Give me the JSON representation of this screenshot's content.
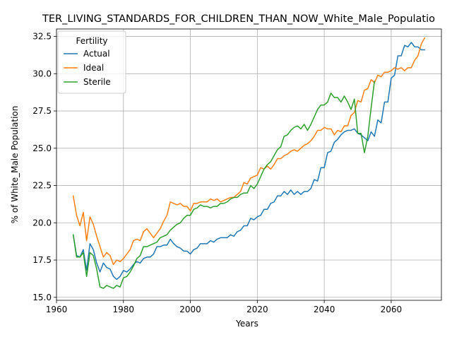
{
  "chart_data": {
    "type": "line",
    "title": "TER_LIVING_STANDARDS_FOR_CHILDREN_THAN_NOW_White_Male_Populatio",
    "xlabel": "Years",
    "ylabel": "% of White_Male Population",
    "xlim": [
      1960,
      2075
    ],
    "ylim": [
      14.8,
      33.0
    ],
    "xticks": [
      1960,
      1980,
      2000,
      2020,
      2040,
      2060
    ],
    "yticks": [
      15.0,
      17.5,
      20.0,
      22.5,
      25.0,
      27.5,
      30.0,
      32.5
    ],
    "ytick_labels": [
      "15.0",
      "17.5",
      "20.0",
      "22.5",
      "25.0",
      "27.5",
      "30.0",
      "32.5"
    ],
    "grid": true,
    "legend": {
      "title": "Fertility",
      "placement": "top-left"
    },
    "x": [
      1965,
      1966,
      1967,
      1968,
      1969,
      1970,
      1971,
      1972,
      1973,
      1974,
      1975,
      1976,
      1977,
      1978,
      1979,
      1980,
      1981,
      1982,
      1983,
      1984,
      1985,
      1986,
      1987,
      1988,
      1989,
      1990,
      1991,
      1992,
      1993,
      1994,
      1995,
      1996,
      1997,
      1998,
      1999,
      2000,
      2001,
      2002,
      2003,
      2004,
      2005,
      2006,
      2007,
      2008,
      2009,
      2010,
      2011,
      2012,
      2013,
      2014,
      2015,
      2016,
      2017,
      2018,
      2019,
      2020,
      2021,
      2022,
      2023,
      2024,
      2025,
      2026,
      2027,
      2028,
      2029,
      2030,
      2031,
      2032,
      2033,
      2034,
      2035,
      2036,
      2037,
      2038,
      2039,
      2040,
      2041,
      2042,
      2043,
      2044,
      2045,
      2046,
      2047,
      2048,
      2049,
      2050,
      2051,
      2052,
      2053,
      2054,
      2055,
      2056,
      2057,
      2058,
      2059,
      2060,
      2061,
      2062,
      2063,
      2064,
      2065,
      2066,
      2067,
      2068,
      2069,
      2070
    ],
    "series": [
      {
        "name": "Actual",
        "color": "#1f77b4",
        "values": [
          19.2,
          17.8,
          17.7,
          18.2,
          16.8,
          18.6,
          18.2,
          17.3,
          16.7,
          17.3,
          17.0,
          16.9,
          16.4,
          16.2,
          16.4,
          16.8,
          16.7,
          16.9,
          17.2,
          17.4,
          17.3,
          17.6,
          17.7,
          17.7,
          17.9,
          18.4,
          18.4,
          18.5,
          18.5,
          18.9,
          18.6,
          18.4,
          18.3,
          18.1,
          18.1,
          17.9,
          18.2,
          18.3,
          18.6,
          18.6,
          18.6,
          18.8,
          18.7,
          18.9,
          19.0,
          19.0,
          19.0,
          19.2,
          19.1,
          19.4,
          19.5,
          19.8,
          19.8,
          20.3,
          20.2,
          20.4,
          20.5,
          20.9,
          20.9,
          21.3,
          21.4,
          21.8,
          21.8,
          22.1,
          21.9,
          22.2,
          21.9,
          22.1,
          21.9,
          22.1,
          22.1,
          22.3,
          22.9,
          22.8,
          23.7,
          23.7,
          24.7,
          24.8,
          25.4,
          25.6,
          25.9,
          26.1,
          26.2,
          26.2,
          26.3,
          26.0,
          25.9,
          25.7,
          25.5,
          26.1,
          25.8,
          26.9,
          26.7,
          28.1,
          28.1,
          29.7,
          29.9,
          31.2,
          31.2,
          31.9,
          31.8,
          32.1,
          31.8,
          31.8,
          31.6,
          31.6
        ]
      },
      {
        "name": "Ideal",
        "color": "#ff7f0e",
        "values": [
          21.8,
          20.5,
          19.8,
          20.7,
          18.8,
          20.4,
          19.9,
          19.1,
          18.4,
          17.7,
          18.0,
          17.8,
          17.2,
          17.5,
          17.4,
          17.6,
          17.9,
          18.2,
          18.8,
          18.9,
          18.8,
          19.4,
          19.6,
          19.3,
          19.0,
          19.3,
          19.6,
          20.1,
          20.5,
          21.4,
          21.3,
          21.2,
          21.3,
          21.1,
          21.1,
          20.8,
          21.3,
          21.3,
          21.4,
          21.4,
          21.4,
          21.6,
          21.5,
          21.6,
          21.4,
          21.5,
          21.6,
          21.7,
          21.7,
          21.9,
          22.1,
          22.7,
          22.6,
          23.0,
          23.1,
          23.2,
          23.7,
          23.6,
          23.8,
          23.6,
          23.9,
          24.3,
          24.3,
          24.5,
          24.6,
          24.8,
          24.9,
          24.8,
          25.0,
          25.2,
          25.3,
          25.5,
          25.8,
          26.2,
          26.2,
          26.4,
          26.3,
          26.3,
          25.9,
          26.2,
          26.1,
          26.5,
          26.5,
          27.2,
          27.4,
          28.2,
          28.1,
          28.9,
          29.0,
          29.6,
          29.4,
          29.9,
          29.8,
          30.1,
          30.1,
          30.2,
          30.4,
          30.3,
          30.4,
          30.2,
          30.4,
          30.4,
          30.9,
          31.2,
          32.0,
          32.4
        ]
      },
      {
        "name": "Sterile",
        "color": "#2ca02c",
        "values": [
          19.2,
          17.7,
          17.7,
          18.0,
          16.4,
          18.0,
          17.8,
          16.9,
          15.7,
          15.6,
          15.8,
          15.7,
          15.6,
          15.8,
          15.7,
          16.3,
          16.4,
          16.7,
          17.1,
          17.6,
          17.8,
          18.4,
          18.4,
          18.5,
          18.6,
          18.7,
          19.0,
          19.1,
          19.2,
          19.5,
          19.7,
          19.9,
          20.0,
          20.3,
          20.5,
          20.5,
          20.9,
          21.0,
          21.2,
          21.1,
          21.1,
          21.0,
          21.1,
          21.1,
          21.3,
          21.3,
          21.4,
          21.6,
          21.7,
          21.7,
          21.9,
          22.0,
          22.0,
          22.5,
          22.3,
          22.6,
          23.1,
          23.6,
          23.9,
          24.1,
          24.5,
          24.9,
          25.1,
          25.8,
          25.9,
          26.2,
          26.4,
          26.5,
          26.3,
          26.6,
          26.2,
          26.6,
          27.1,
          27.6,
          27.9,
          27.9,
          28.1,
          28.7,
          28.4,
          28.4,
          28.1,
          28.5,
          28.1,
          27.6,
          28.3,
          26.0,
          26.0,
          24.7,
          25.8,
          27.7,
          29.5,
          null,
          null,
          null,
          null,
          null,
          null,
          null,
          null,
          null,
          null,
          null,
          null,
          null,
          null,
          null
        ]
      }
    ]
  }
}
